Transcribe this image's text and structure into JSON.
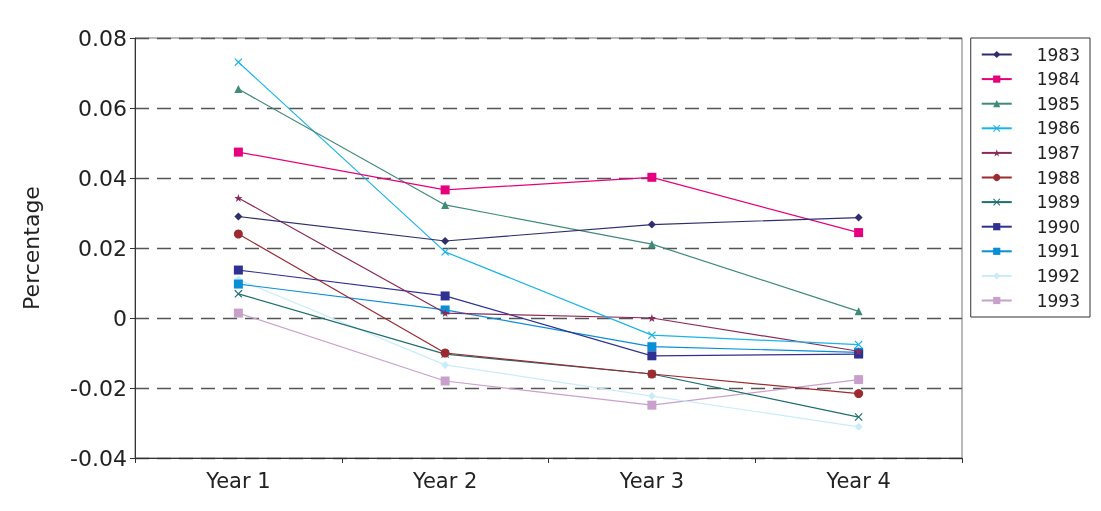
{
  "chart_data": {
    "type": "line",
    "ylabel": "Percentage",
    "categories": [
      "Year 1",
      "Year 2",
      "Year 3",
      "Year 4"
    ],
    "ylim": [
      -0.04,
      0.08
    ],
    "yticks": [
      -0.04,
      -0.02,
      0,
      0.02,
      0.04,
      0.06,
      0.08
    ],
    "grid": "y",
    "legend": "right",
    "line_style": "solid",
    "series": [
      {
        "name": "1983",
        "color": "#2e2e6e",
        "marker": "diamond",
        "values": [
          0.029,
          0.022,
          0.0267,
          0.0287
        ]
      },
      {
        "name": "1984",
        "color": "#e6007e",
        "marker": "square",
        "values": [
          0.0474,
          0.0366,
          0.0402,
          0.0244
        ]
      },
      {
        "name": "1985",
        "color": "#3f8a7a",
        "marker": "triangle",
        "values": [
          0.0654,
          0.0323,
          0.0211,
          0.0019
        ]
      },
      {
        "name": "1986",
        "color": "#19b4e8",
        "marker": "cross",
        "values": [
          0.0731,
          0.0189,
          -0.0049,
          -0.0076
        ]
      },
      {
        "name": "1987",
        "color": "#8b2a5a",
        "marker": "star",
        "values": [
          0.0343,
          0.0014,
          0.0,
          -0.0095
        ]
      },
      {
        "name": "1988",
        "color": "#9b2b30",
        "marker": "circle",
        "values": [
          0.024,
          -0.01,
          -0.016,
          -0.0216
        ]
      },
      {
        "name": "1989",
        "color": "#1f6e6e",
        "marker": "cross",
        "values": [
          0.0069,
          -0.0103,
          -0.016,
          -0.0283
        ]
      },
      {
        "name": "1990",
        "color": "#2e3192",
        "marker": "square",
        "values": [
          0.0137,
          0.0063,
          -0.0108,
          -0.0103
        ]
      },
      {
        "name": "1991",
        "color": "#0a8fd6",
        "marker": "square",
        "values": [
          0.0097,
          0.0023,
          -0.0082,
          -0.0098
        ]
      },
      {
        "name": "1992",
        "color": "#c9ecfa",
        "marker": "diamond",
        "values": [
          0.011,
          -0.0134,
          -0.0223,
          -0.0311
        ]
      },
      {
        "name": "1993",
        "color": "#c9a0cc",
        "marker": "square",
        "values": [
          0.0014,
          -0.018,
          -0.0249,
          -0.0176
        ]
      }
    ]
  }
}
